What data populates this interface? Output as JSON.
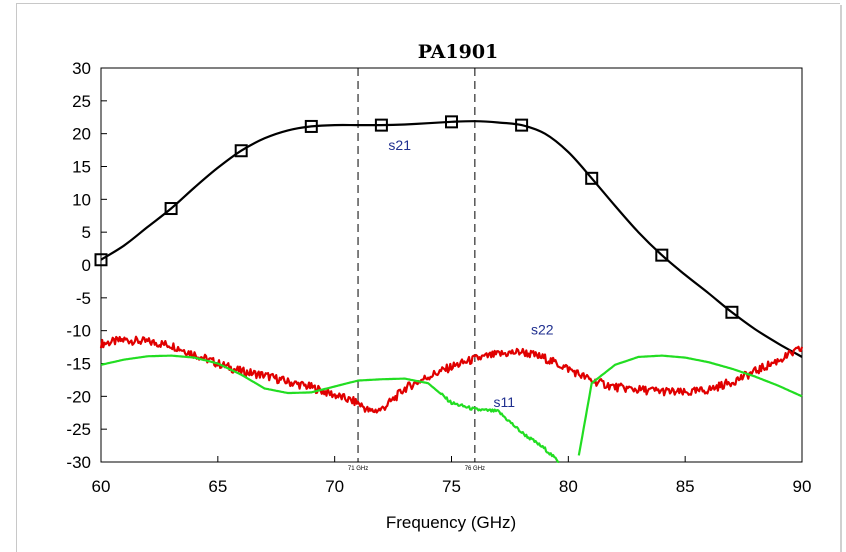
{
  "chart_data": {
    "type": "line",
    "title": "PA1901",
    "xlabel": "Frequency (GHz)",
    "ylabel": "",
    "xlim": [
      60,
      90
    ],
    "ylim": [
      -30,
      30
    ],
    "x_ticks": [
      60,
      65,
      70,
      75,
      80,
      85,
      90
    ],
    "y_ticks": [
      30,
      25,
      20,
      15,
      10,
      5,
      0,
      -5,
      -10,
      -15,
      -20,
      -25,
      -30
    ],
    "grid": false,
    "markers": [
      {
        "x": 71,
        "label": "71 GHz"
      },
      {
        "x": 76,
        "label": "76 GHz"
      }
    ],
    "series": [
      {
        "name": "s21",
        "color": "#000000",
        "marker": "square",
        "label_at": [
          72.3,
          17.5
        ],
        "x": [
          60,
          61,
          62,
          63,
          64,
          65,
          66,
          67,
          68,
          69,
          70,
          71,
          72,
          73,
          74,
          75,
          76,
          77,
          78,
          79,
          80,
          81,
          82,
          83,
          84,
          85,
          86,
          87,
          88,
          89,
          90
        ],
        "y": [
          0.8,
          3.0,
          5.8,
          8.6,
          11.8,
          14.8,
          17.4,
          19.3,
          20.5,
          21.1,
          21.3,
          21.3,
          21.3,
          21.4,
          21.6,
          21.8,
          21.9,
          21.7,
          21.3,
          20.0,
          17.2,
          13.2,
          9.0,
          5.0,
          1.5,
          -1.5,
          -4.3,
          -7.2,
          -9.8,
          -12.0,
          -14.0
        ],
        "marker_x": [
          60,
          63,
          66,
          69,
          72,
          75,
          78,
          81,
          84,
          87
        ]
      },
      {
        "name": "s22",
        "color": "#e00000",
        "label_at": [
          78.4,
          -10.6
        ],
        "x": [
          60,
          61,
          62,
          63,
          64,
          65,
          66,
          67,
          68,
          69,
          70,
          71,
          71.5,
          72,
          72.5,
          73,
          74,
          75,
          76,
          77,
          78,
          79,
          80,
          81,
          82,
          83,
          84,
          85,
          86,
          87,
          88,
          89,
          90
        ],
        "y": [
          -12.0,
          -11.4,
          -11.7,
          -12.2,
          -13.6,
          -15.0,
          -16.2,
          -16.8,
          -17.8,
          -18.6,
          -19.8,
          -21.0,
          -22.3,
          -22.0,
          -20.5,
          -18.8,
          -17.0,
          -15.5,
          -14.3,
          -13.6,
          -13.2,
          -14.2,
          -15.8,
          -17.6,
          -18.6,
          -19.0,
          -19.2,
          -19.5,
          -19.0,
          -17.8,
          -16.2,
          -14.5,
          -12.7
        ]
      },
      {
        "name": "s11",
        "color": "#22dd22",
        "label_at": [
          76.8,
          -21.6
        ],
        "x": [
          60,
          61,
          62,
          63,
          64,
          65,
          66,
          67,
          68,
          69,
          70,
          71,
          72,
          73,
          74,
          75,
          76,
          77,
          78,
          79,
          79.6,
          80.4,
          81,
          82,
          83,
          84,
          85,
          86,
          87,
          88,
          89,
          90
        ],
        "y": [
          -15.2,
          -14.4,
          -13.9,
          -13.8,
          -14.1,
          -15.0,
          -16.7,
          -18.8,
          -19.5,
          -19.4,
          -18.5,
          -17.6,
          -17.4,
          -17.3,
          -18.0,
          -21.0,
          -22.0,
          -22.3,
          -25.5,
          -28.0,
          -30.0,
          -30.0,
          -18.0,
          -15.2,
          -14.0,
          -13.8,
          -14.1,
          -14.8,
          -15.8,
          -17.0,
          -18.4,
          -20.0
        ]
      }
    ]
  }
}
